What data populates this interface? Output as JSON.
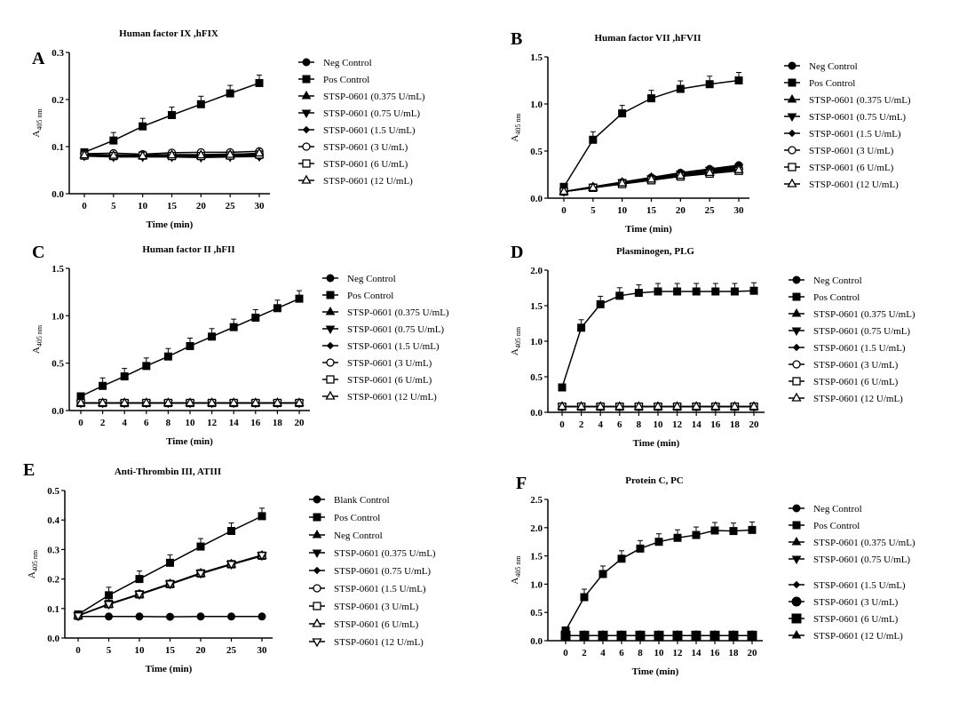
{
  "chart_data": [
    {
      "panel": "A",
      "type": "line",
      "title": "Human factor IX ,hFIX",
      "xlabel": "Time (min)",
      "ylabel": "A",
      "ylabel_sub": "405 nm",
      "xlim": [
        0,
        30
      ],
      "ylim": [
        0,
        0.3
      ],
      "xticks": [
        0,
        5,
        10,
        15,
        20,
        25,
        30
      ],
      "yticks": [
        "0.0",
        "0.1",
        "0.2",
        "0.3"
      ],
      "ytick_values": [
        0,
        0.1,
        0.2,
        0.3
      ],
      "x": [
        0,
        5,
        10,
        15,
        20,
        25,
        30
      ],
      "series": [
        {
          "name": "Neg Control",
          "marker": "circle",
          "values": [
            0.08,
            0.079,
            0.08,
            0.079,
            0.079,
            0.08,
            0.08
          ]
        },
        {
          "name": "Pos Control",
          "marker": "square",
          "values": [
            0.088,
            0.113,
            0.143,
            0.167,
            0.19,
            0.213,
            0.235
          ]
        },
        {
          "name": "STSP-0601 (0.375 U/mL)",
          "marker": "triangle",
          "values": [
            0.082,
            0.08,
            0.08,
            0.081,
            0.08,
            0.081,
            0.082
          ]
        },
        {
          "name": "STSP-0601 (0.75 U/mL)",
          "marker": "triangle-down",
          "values": [
            0.08,
            0.078,
            0.078,
            0.078,
            0.077,
            0.078,
            0.079
          ]
        },
        {
          "name": "STSP-0601 (1.5 U/mL)",
          "marker": "diamond",
          "values": [
            0.083,
            0.082,
            0.082,
            0.083,
            0.083,
            0.084,
            0.085
          ]
        },
        {
          "name": "STSP-0601 (3 U/mL)",
          "marker": "open-circle",
          "values": [
            0.085,
            0.086,
            0.084,
            0.087,
            0.088,
            0.088,
            0.09
          ]
        },
        {
          "name": "STSP-0601 (6 U/mL)",
          "marker": "open-square",
          "values": [
            0.081,
            0.08,
            0.081,
            0.08,
            0.08,
            0.081,
            0.083
          ]
        },
        {
          "name": "STSP-0601 (12 U/mL)",
          "marker": "open-triangle",
          "values": [
            0.082,
            0.081,
            0.08,
            0.082,
            0.082,
            0.083,
            0.086
          ]
        }
      ]
    },
    {
      "panel": "B",
      "type": "line",
      "title": "Human factor VII ,hFVII",
      "xlabel": "Time (min)",
      "ylabel": "A",
      "ylabel_sub": "405 nm",
      "xlim": [
        0,
        30
      ],
      "ylim": [
        0,
        1.5
      ],
      "xticks": [
        0,
        5,
        10,
        15,
        20,
        25,
        30
      ],
      "yticks": [
        "0.0",
        "0.5",
        "1.0",
        "1.5"
      ],
      "ytick_values": [
        0,
        0.5,
        1,
        1.5
      ],
      "x": [
        0,
        5,
        10,
        15,
        20,
        25,
        30
      ],
      "series": [
        {
          "name": "Neg Control",
          "marker": "circle",
          "values": [
            0.07,
            0.12,
            0.17,
            0.22,
            0.27,
            0.31,
            0.35
          ]
        },
        {
          "name": "Pos Control",
          "marker": "square",
          "values": [
            0.12,
            0.62,
            0.9,
            1.06,
            1.16,
            1.21,
            1.25
          ]
        },
        {
          "name": "STSP-0601 (0.375 U/mL)",
          "marker": "triangle",
          "values": [
            0.07,
            0.12,
            0.17,
            0.22,
            0.26,
            0.3,
            0.34
          ]
        },
        {
          "name": "STSP-0601 (0.75 U/mL)",
          "marker": "triangle-down",
          "values": [
            0.07,
            0.12,
            0.17,
            0.21,
            0.26,
            0.3,
            0.33
          ]
        },
        {
          "name": "STSP-0601 (1.5 U/mL)",
          "marker": "diamond",
          "values": [
            0.07,
            0.12,
            0.16,
            0.21,
            0.25,
            0.29,
            0.32
          ]
        },
        {
          "name": "STSP-0601 (3 U/mL)",
          "marker": "open-circle",
          "values": [
            0.07,
            0.11,
            0.16,
            0.2,
            0.24,
            0.28,
            0.31
          ]
        },
        {
          "name": "STSP-0601 (6 U/mL)",
          "marker": "open-square",
          "values": [
            0.07,
            0.11,
            0.15,
            0.19,
            0.23,
            0.26,
            0.29
          ]
        },
        {
          "name": "STSP-0601 (12 U/mL)",
          "marker": "open-triangle",
          "values": [
            0.07,
            0.11,
            0.16,
            0.2,
            0.24,
            0.27,
            0.3
          ]
        }
      ]
    },
    {
      "panel": "C",
      "type": "line",
      "title": "Human factor II ,hFII",
      "xlabel": "Time (min)",
      "ylabel": "A",
      "ylabel_sub": "405 nm",
      "xlim": [
        0,
        20
      ],
      "ylim": [
        0,
        1.5
      ],
      "xticks": [
        0,
        2,
        4,
        6,
        8,
        10,
        12,
        14,
        16,
        18,
        20
      ],
      "yticks": [
        "0.0",
        "0.5",
        "1.0",
        "1.5"
      ],
      "ytick_values": [
        0,
        0.5,
        1,
        1.5
      ],
      "x": [
        0,
        2,
        4,
        6,
        8,
        10,
        12,
        14,
        16,
        18,
        20
      ],
      "series": [
        {
          "name": "Neg Control",
          "marker": "circle",
          "values": [
            0.08,
            0.08,
            0.08,
            0.08,
            0.08,
            0.08,
            0.08,
            0.08,
            0.08,
            0.08,
            0.08
          ]
        },
        {
          "name": "Pos Control",
          "marker": "square",
          "values": [
            0.15,
            0.26,
            0.36,
            0.47,
            0.57,
            0.68,
            0.78,
            0.88,
            0.98,
            1.08,
            1.18
          ]
        },
        {
          "name": "STSP-0601 (0.375 U/mL)",
          "marker": "triangle",
          "values": [
            0.08,
            0.08,
            0.08,
            0.08,
            0.08,
            0.08,
            0.08,
            0.08,
            0.08,
            0.08,
            0.08
          ]
        },
        {
          "name": "STSP-0601 (0.75 U/mL)",
          "marker": "triangle-down",
          "values": [
            0.08,
            0.08,
            0.08,
            0.08,
            0.08,
            0.08,
            0.08,
            0.08,
            0.08,
            0.08,
            0.08
          ]
        },
        {
          "name": "STSP-0601 (1.5 U/mL)",
          "marker": "diamond",
          "values": [
            0.08,
            0.08,
            0.08,
            0.08,
            0.08,
            0.08,
            0.08,
            0.08,
            0.08,
            0.08,
            0.08
          ]
        },
        {
          "name": "STSP-0601 (3 U/mL)",
          "marker": "open-circle",
          "values": [
            0.08,
            0.08,
            0.08,
            0.08,
            0.08,
            0.08,
            0.08,
            0.08,
            0.08,
            0.08,
            0.08
          ]
        },
        {
          "name": "STSP-0601 (6 U/mL)",
          "marker": "open-square",
          "values": [
            0.08,
            0.08,
            0.08,
            0.08,
            0.08,
            0.08,
            0.08,
            0.08,
            0.08,
            0.08,
            0.08
          ]
        },
        {
          "name": "STSP-0601 (12 U/mL)",
          "marker": "open-triangle",
          "values": [
            0.08,
            0.08,
            0.08,
            0.08,
            0.08,
            0.08,
            0.08,
            0.08,
            0.08,
            0.08,
            0.08
          ]
        }
      ]
    },
    {
      "panel": "D",
      "type": "line",
      "title": "Plasminogen, PLG",
      "xlabel": "Time (min)",
      "ylabel": "A",
      "ylabel_sub": "405 nm",
      "xlim": [
        0,
        20
      ],
      "ylim": [
        0,
        2.0
      ],
      "xticks": [
        0,
        2,
        4,
        6,
        8,
        10,
        12,
        14,
        16,
        18,
        20
      ],
      "yticks": [
        "0.0",
        "0.5",
        "1.0",
        "1.5",
        "2.0"
      ],
      "ytick_values": [
        0,
        0.5,
        1,
        1.5,
        2
      ],
      "x": [
        0,
        2,
        4,
        6,
        8,
        10,
        12,
        14,
        16,
        18,
        20
      ],
      "series": [
        {
          "name": "Neg Control",
          "marker": "circle",
          "values": [
            0.08,
            0.08,
            0.08,
            0.08,
            0.08,
            0.08,
            0.08,
            0.08,
            0.08,
            0.08,
            0.08
          ]
        },
        {
          "name": "Pos Control",
          "marker": "square",
          "values": [
            0.35,
            1.19,
            1.52,
            1.64,
            1.68,
            1.7,
            1.7,
            1.7,
            1.7,
            1.7,
            1.71
          ]
        },
        {
          "name": "STSP-0601 (0.375 U/mL)",
          "marker": "triangle",
          "values": [
            0.08,
            0.08,
            0.08,
            0.08,
            0.08,
            0.08,
            0.08,
            0.08,
            0.08,
            0.08,
            0.08
          ]
        },
        {
          "name": "STSP-0601 (0.75 U/mL)",
          "marker": "triangle-down",
          "values": [
            0.08,
            0.08,
            0.08,
            0.08,
            0.08,
            0.08,
            0.08,
            0.08,
            0.08,
            0.08,
            0.08
          ]
        },
        {
          "name": "STSP-0601 (1.5 U/mL)",
          "marker": "diamond",
          "values": [
            0.08,
            0.08,
            0.08,
            0.08,
            0.08,
            0.08,
            0.08,
            0.08,
            0.08,
            0.08,
            0.08
          ]
        },
        {
          "name": "STSP-0601 (3 U/mL)",
          "marker": "open-circle",
          "values": [
            0.08,
            0.08,
            0.08,
            0.08,
            0.08,
            0.08,
            0.08,
            0.08,
            0.08,
            0.08,
            0.08
          ]
        },
        {
          "name": "STSP-0601 (6 U/mL)",
          "marker": "open-square",
          "values": [
            0.08,
            0.08,
            0.08,
            0.08,
            0.08,
            0.08,
            0.08,
            0.08,
            0.08,
            0.08,
            0.08
          ]
        },
        {
          "name": "STSP-0601 (12 U/mL)",
          "marker": "open-triangle",
          "values": [
            0.08,
            0.08,
            0.08,
            0.08,
            0.08,
            0.08,
            0.08,
            0.08,
            0.08,
            0.08,
            0.08
          ]
        }
      ]
    },
    {
      "panel": "E",
      "type": "line",
      "title": "Anti-Thrombin III, ATIII",
      "xlabel": "Time (min)",
      "ylabel": "A",
      "ylabel_sub": "405 nm",
      "xlim": [
        0,
        30
      ],
      "ylim": [
        0,
        0.5
      ],
      "xticks": [
        0,
        5,
        10,
        15,
        20,
        25,
        30
      ],
      "yticks": [
        "0.0",
        "0.1",
        "0.2",
        "0.3",
        "0.4",
        "0.5"
      ],
      "ytick_values": [
        0,
        0.1,
        0.2,
        0.3,
        0.4,
        0.5
      ],
      "x": [
        0,
        5,
        10,
        15,
        20,
        25,
        30
      ],
      "series": [
        {
          "name": "Blank Control",
          "marker": "circle",
          "values": [
            0.073,
            0.073,
            0.073,
            0.072,
            0.073,
            0.073,
            0.073
          ]
        },
        {
          "name": "Pos Control",
          "marker": "square",
          "values": [
            0.08,
            0.145,
            0.2,
            0.255,
            0.31,
            0.363,
            0.413
          ]
        },
        {
          "name": "Neg Control",
          "marker": "triangle",
          "values": [
            0.076,
            0.115,
            0.148,
            0.183,
            0.22,
            0.25,
            0.28
          ]
        },
        {
          "name": "STSP-0601 (0.375 U/mL)",
          "marker": "triangle-down",
          "values": [
            0.076,
            0.115,
            0.148,
            0.183,
            0.219,
            0.25,
            0.279
          ]
        },
        {
          "name": "STSP-0601 (0.75 U/mL)",
          "marker": "diamond",
          "values": [
            0.076,
            0.114,
            0.147,
            0.182,
            0.218,
            0.249,
            0.278
          ]
        },
        {
          "name": "STSP-0601 (1.5 U/mL)",
          "marker": "open-circle",
          "values": [
            0.076,
            0.115,
            0.149,
            0.184,
            0.22,
            0.251,
            0.28
          ]
        },
        {
          "name": "STSP-0601 (3 U/mL)",
          "marker": "open-square",
          "values": [
            0.076,
            0.115,
            0.148,
            0.183,
            0.219,
            0.25,
            0.279
          ]
        },
        {
          "name": "STSP-0601 (6 U/mL)",
          "marker": "open-triangle",
          "values": [
            0.076,
            0.114,
            0.148,
            0.183,
            0.219,
            0.25,
            0.279
          ]
        },
        {
          "name": "STSP-0601 (12 U/mL)",
          "marker": "open-triangle-down",
          "values": [
            0.076,
            0.115,
            0.149,
            0.184,
            0.22,
            0.251,
            0.281
          ]
        }
      ]
    },
    {
      "panel": "F",
      "type": "line",
      "title": "Protein C, PC",
      "xlabel": "Time (min)",
      "ylabel": "A",
      "ylabel_sub": "405 nm",
      "xlim": [
        0,
        20
      ],
      "ylim": [
        0,
        2.5
      ],
      "xticks": [
        0,
        2,
        4,
        6,
        8,
        10,
        12,
        14,
        16,
        18,
        20
      ],
      "yticks": [
        "0.0",
        "0.5",
        "1.0",
        "1.5",
        "2.0",
        "2.5"
      ],
      "ytick_values": [
        0,
        0.5,
        1,
        1.5,
        2,
        2.5
      ],
      "x": [
        0,
        2,
        4,
        6,
        8,
        10,
        12,
        14,
        16,
        18,
        20
      ],
      "series": [
        {
          "name": "Neg Control",
          "marker": "circle",
          "values": [
            0.09,
            0.09,
            0.09,
            0.09,
            0.09,
            0.09,
            0.09,
            0.09,
            0.09,
            0.09,
            0.09
          ]
        },
        {
          "name": "Pos Control",
          "marker": "square",
          "values": [
            0.18,
            0.77,
            1.18,
            1.45,
            1.63,
            1.75,
            1.82,
            1.87,
            1.95,
            1.94,
            1.96
          ]
        },
        {
          "name": "STSP-0601 (0.375 U/mL)",
          "marker": "triangle",
          "values": [
            0.09,
            0.09,
            0.09,
            0.09,
            0.09,
            0.09,
            0.09,
            0.09,
            0.09,
            0.09,
            0.09
          ]
        },
        {
          "name": "STSP-0601 (0.75 U/mL)",
          "marker": "triangle-down",
          "values": [
            0.09,
            0.09,
            0.09,
            0.09,
            0.09,
            0.09,
            0.09,
            0.09,
            0.09,
            0.09,
            0.09
          ]
        },
        {
          "name": "STSP-0601 (1.5 U/mL)",
          "marker": "diamond",
          "values": [
            0.09,
            0.09,
            0.09,
            0.09,
            0.09,
            0.09,
            0.09,
            0.09,
            0.09,
            0.09,
            0.09
          ]
        },
        {
          "name": "STSP-0601 (3 U/mL)",
          "marker": "big-circle",
          "values": [
            0.09,
            0.09,
            0.09,
            0.09,
            0.09,
            0.09,
            0.09,
            0.09,
            0.09,
            0.09,
            0.09
          ]
        },
        {
          "name": "STSP-0601 (6 U/mL)",
          "marker": "big-square",
          "values": [
            0.09,
            0.09,
            0.09,
            0.09,
            0.09,
            0.09,
            0.09,
            0.09,
            0.09,
            0.09,
            0.09
          ]
        },
        {
          "name": "STSP-0601 (12 U/mL)",
          "marker": "triangle",
          "values": [
            0.09,
            0.09,
            0.09,
            0.09,
            0.09,
            0.09,
            0.09,
            0.09,
            0.09,
            0.09,
            0.09
          ]
        }
      ]
    }
  ]
}
